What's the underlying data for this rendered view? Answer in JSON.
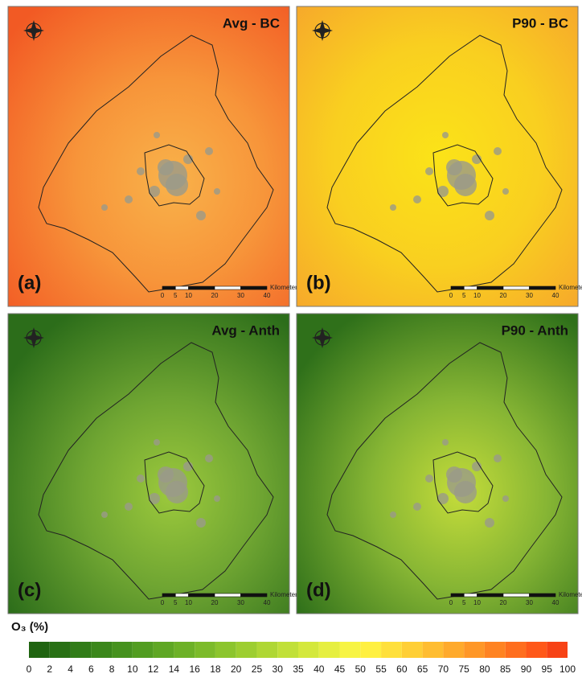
{
  "panels": [
    {
      "title": "Avg - BC",
      "label": "(a)"
    },
    {
      "title": "P90 - BC",
      "label": "(b)"
    },
    {
      "title": "Avg - Anth",
      "label": "(c)"
    },
    {
      "title": "P90 - Anth",
      "label": "(d)"
    }
  ],
  "scale_bar": {
    "ticks": [
      0,
      5,
      10,
      20,
      30,
      40
    ],
    "unit": "Kilometers"
  },
  "legend": {
    "title": "O₃ (%)",
    "labels": [
      0,
      2,
      4,
      6,
      8,
      10,
      12,
      14,
      16,
      18,
      20,
      25,
      30,
      35,
      40,
      45,
      50,
      55,
      60,
      65,
      70,
      75,
      80,
      85,
      90,
      95,
      100
    ],
    "colors": [
      "#1f6410",
      "#287014",
      "#317c18",
      "#3b871b",
      "#46921e",
      "#529d21",
      "#5fa724",
      "#6db127",
      "#7cbb2a",
      "#8cc52d",
      "#9dce30",
      "#afd734",
      "#c1e038",
      "#d4e83c",
      "#e6ef40",
      "#f7f444",
      "#fff041",
      "#ffe03c",
      "#ffcf36",
      "#ffbd31",
      "#ffaa2c",
      "#ff9727",
      "#ff8322",
      "#ff6e1e",
      "#ff5819",
      "#f74215"
    ]
  }
}
